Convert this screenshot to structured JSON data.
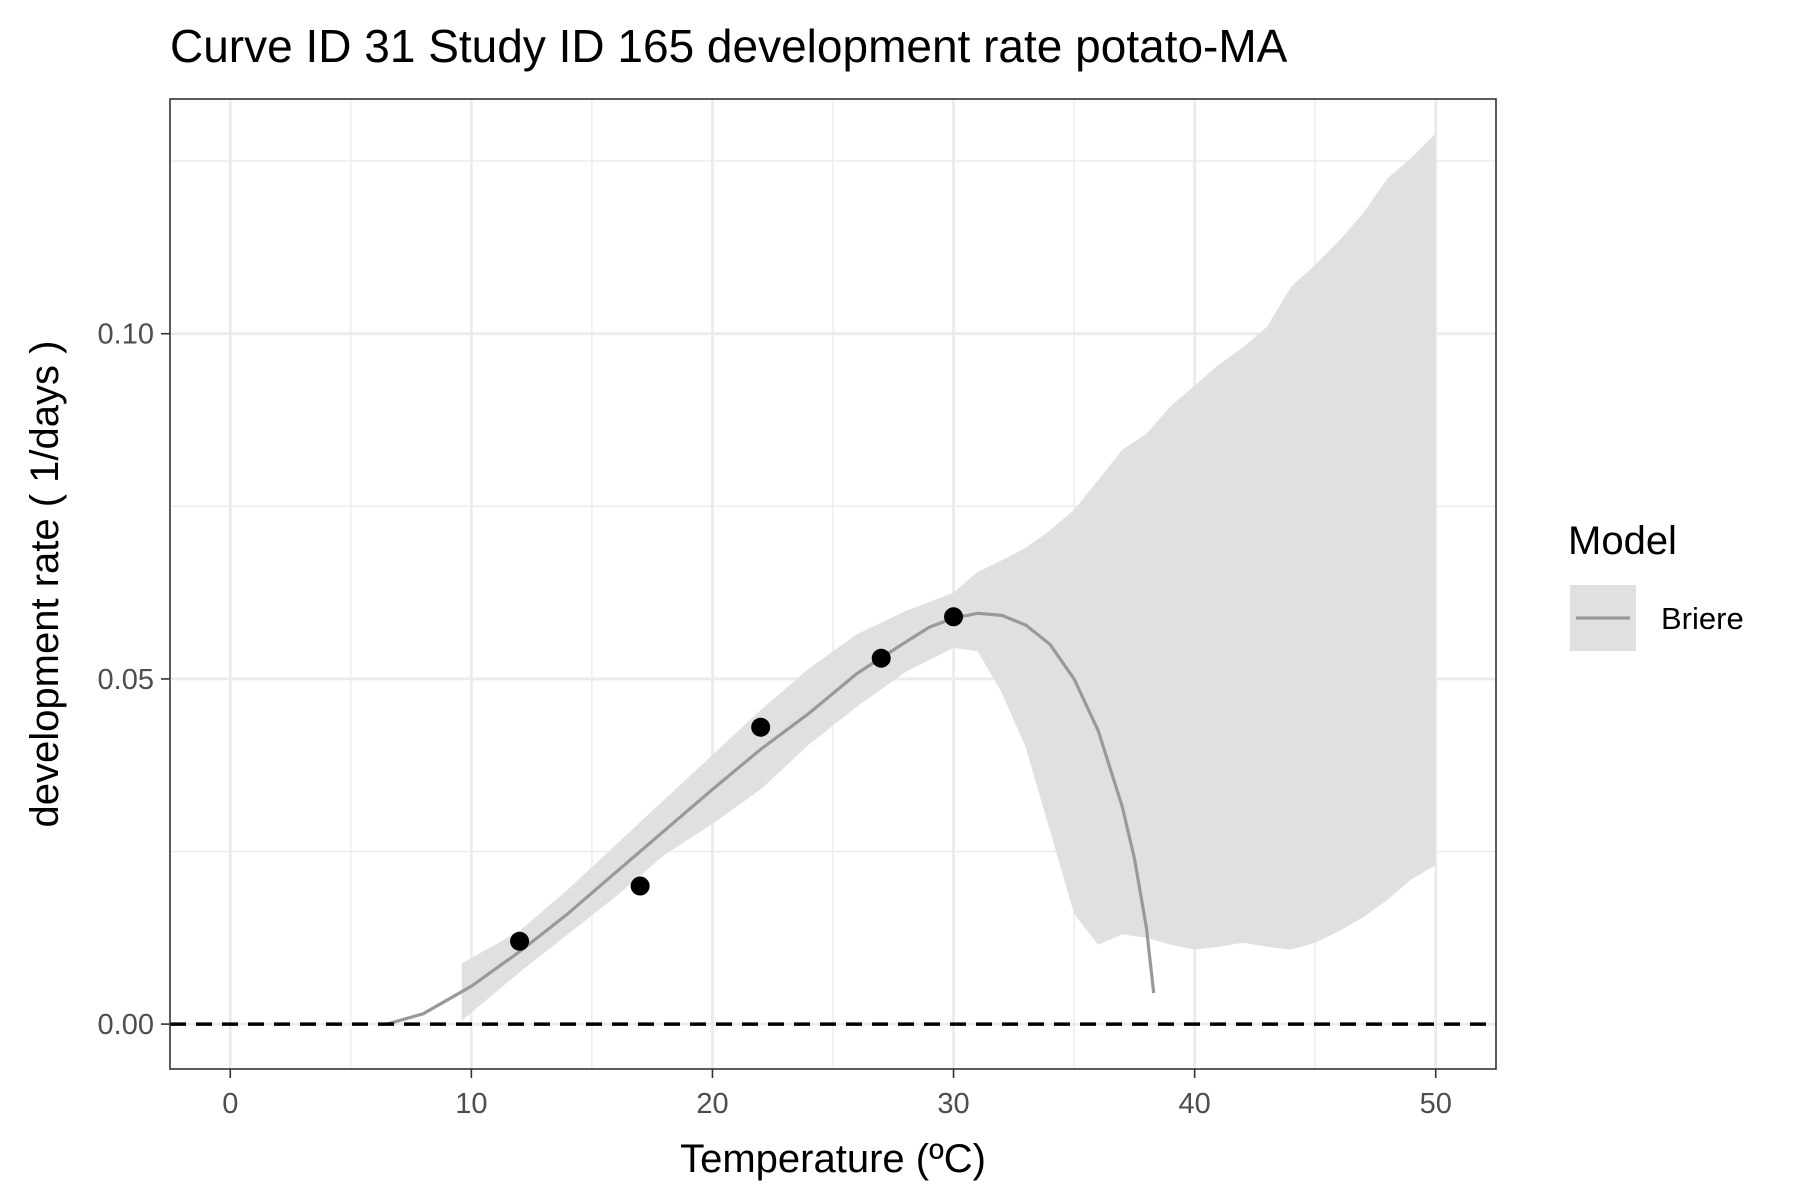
{
  "chart_data": {
    "type": "line",
    "title": "Curve ID 31 Study ID 165 development rate potato-MA",
    "xlabel": "Temperature (ºC)",
    "ylabel": "development rate ( 1/days )",
    "xlim": [
      -2.5,
      52.5
    ],
    "ylim": [
      -0.0065,
      0.134
    ],
    "x_ticks": [
      0,
      10,
      20,
      30,
      40,
      50
    ],
    "x_tick_labels": [
      "0",
      "10",
      "20",
      "30",
      "40",
      "50"
    ],
    "y_ticks": [
      0.0,
      0.05,
      0.1
    ],
    "y_tick_labels": [
      "0.00",
      "0.05",
      "0.10"
    ],
    "grid": true,
    "legend": {
      "title": "Model",
      "position": "right",
      "entries": [
        "Briere"
      ]
    },
    "reference_line": {
      "y": 0,
      "style": "dashed",
      "color": "#000000"
    },
    "points": {
      "x": [
        12,
        17,
        22,
        27,
        30
      ],
      "y": [
        0.012,
        0.02,
        0.043,
        0.053,
        0.059
      ],
      "color": "#000000"
    },
    "series": [
      {
        "name": "Briere",
        "color": "#999999",
        "x": [
          6.5,
          8,
          10,
          12,
          14,
          16,
          18,
          20,
          22,
          24,
          26,
          28,
          29,
          30,
          31,
          32,
          33,
          34,
          35,
          36,
          37,
          37.5,
          38,
          38.3
        ],
        "y": [
          0.0,
          0.0015,
          0.0055,
          0.0105,
          0.016,
          0.022,
          0.028,
          0.034,
          0.0398,
          0.045,
          0.0508,
          0.0553,
          0.0575,
          0.0588,
          0.0595,
          0.0592,
          0.0578,
          0.055,
          0.05,
          0.0425,
          0.0315,
          0.024,
          0.014,
          0.0045
        ]
      }
    ],
    "confidence_band": {
      "color": "#e0e0e0",
      "x": [
        9.6,
        12,
        14,
        16,
        18,
        20,
        22,
        24,
        26,
        28,
        30,
        31,
        32,
        33,
        34,
        35,
        36,
        37,
        38,
        39,
        40,
        41,
        42,
        43,
        44,
        45,
        46,
        47,
        48,
        49,
        50
      ],
      "upper": [
        0.0088,
        0.0135,
        0.0195,
        0.026,
        0.0325,
        0.039,
        0.0455,
        0.0515,
        0.0565,
        0.0598,
        0.0625,
        0.0655,
        0.0672,
        0.069,
        0.0715,
        0.0745,
        0.0788,
        0.0832,
        0.0855,
        0.0895,
        0.0925,
        0.0955,
        0.098,
        0.101,
        0.1068,
        0.11,
        0.1135,
        0.1175,
        0.1225,
        0.1255,
        0.129
      ],
      "lower": [
        0.0005,
        0.0075,
        0.013,
        0.0185,
        0.0245,
        0.029,
        0.034,
        0.0405,
        0.046,
        0.051,
        0.0545,
        0.054,
        0.048,
        0.04,
        0.028,
        0.016,
        0.0115,
        0.013,
        0.0125,
        0.0115,
        0.0108,
        0.0112,
        0.0118,
        0.0112,
        0.0108,
        0.0118,
        0.0135,
        0.0155,
        0.018,
        0.021,
        0.023
      ]
    }
  }
}
